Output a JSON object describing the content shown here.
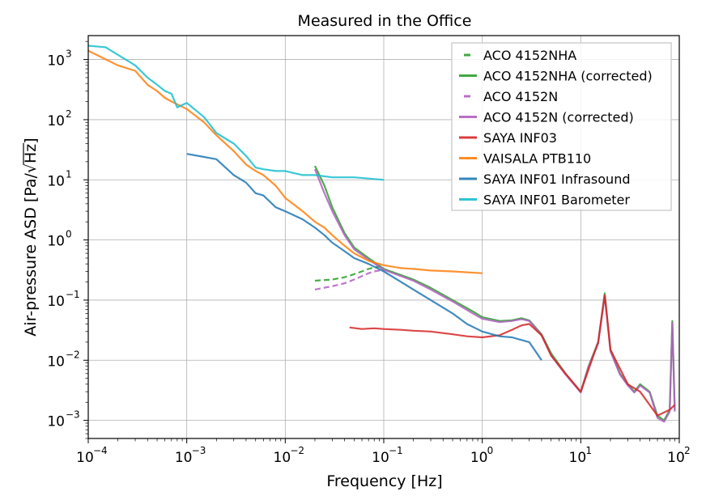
{
  "chart_data": {
    "type": "line",
    "title": "Measured in the Office",
    "xlabel": "Frequency [Hz]",
    "ylabel_prefix": "Air-pressure ASD [Pa/",
    "ylabel_radicand": "Hz",
    "ylabel_suffix": "]",
    "xscale": "log",
    "yscale": "log",
    "xlim": [
      0.0001,
      100
    ],
    "ylim": [
      0.0005,
      2500
    ],
    "grid": true,
    "legend_position": "top-right",
    "xticks": [
      {
        "value": 0.0001,
        "base": "10",
        "exp": "−4"
      },
      {
        "value": 0.001,
        "base": "10",
        "exp": "−3"
      },
      {
        "value": 0.01,
        "base": "10",
        "exp": "−2"
      },
      {
        "value": 0.1,
        "base": "10",
        "exp": "−1"
      },
      {
        "value": 1,
        "base": "10",
        "exp": "0"
      },
      {
        "value": 10,
        "base": "10",
        "exp": "1"
      },
      {
        "value": 100,
        "base": "10",
        "exp": "2"
      }
    ],
    "yticks": [
      {
        "value": 0.001,
        "base": "10",
        "exp": "−3"
      },
      {
        "value": 0.01,
        "base": "10",
        "exp": "−2"
      },
      {
        "value": 0.1,
        "base": "10",
        "exp": "−1"
      },
      {
        "value": 1,
        "base": "10",
        "exp": "0"
      },
      {
        "value": 10,
        "base": "10",
        "exp": "1"
      },
      {
        "value": 100,
        "base": "10",
        "exp": "2"
      },
      {
        "value": 1000,
        "base": "10",
        "exp": "3"
      }
    ],
    "series": [
      {
        "name": "ACO 4152NHA",
        "color": "#2ca02c",
        "dashed": true,
        "x": [
          0.02,
          0.03,
          0.04,
          0.05,
          0.06,
          0.07,
          0.08,
          0.09,
          0.1
        ],
        "y": [
          0.21,
          0.22,
          0.24,
          0.27,
          0.3,
          0.33,
          0.35,
          0.36,
          0.36
        ]
      },
      {
        "name": "ACO 4152NHA (corrected)",
        "color": "#2ca02c",
        "dashed": false,
        "x": [
          0.02,
          0.025,
          0.03,
          0.04,
          0.05,
          0.07,
          0.1,
          0.2,
          0.3,
          0.5,
          0.8,
          1,
          1.5,
          2,
          2.5,
          3,
          4,
          5,
          7,
          10,
          12,
          15,
          17.5,
          20,
          25,
          30,
          35,
          40,
          50,
          60,
          70,
          80,
          85,
          90
        ],
        "y": [
          17,
          8,
          3.5,
          1.3,
          0.75,
          0.5,
          0.33,
          0.22,
          0.16,
          0.1,
          0.065,
          0.052,
          0.045,
          0.046,
          0.05,
          0.046,
          0.027,
          0.013,
          0.006,
          0.003,
          0.008,
          0.02,
          0.13,
          0.015,
          0.006,
          0.004,
          0.003,
          0.004,
          0.003,
          0.0012,
          0.001,
          0.0015,
          0.045,
          0.0015
        ]
      },
      {
        "name": "ACO 4152N",
        "color": "#b05fc0",
        "dashed": true,
        "x": [
          0.02,
          0.03,
          0.04,
          0.05,
          0.06,
          0.07,
          0.08,
          0.09,
          0.1
        ],
        "y": [
          0.15,
          0.17,
          0.19,
          0.22,
          0.25,
          0.28,
          0.3,
          0.31,
          0.31
        ]
      },
      {
        "name": "ACO 4152N (corrected)",
        "color": "#b05fc0",
        "dashed": false,
        "x": [
          0.02,
          0.025,
          0.03,
          0.04,
          0.05,
          0.07,
          0.1,
          0.2,
          0.3,
          0.5,
          0.8,
          1,
          1.5,
          2,
          2.5,
          3,
          4,
          5,
          7,
          10,
          12,
          15,
          17.5,
          20,
          25,
          30,
          35,
          40,
          50,
          60,
          70,
          80,
          85,
          90
        ],
        "y": [
          15,
          6,
          3,
          1.2,
          0.7,
          0.47,
          0.32,
          0.21,
          0.15,
          0.095,
          0.06,
          0.049,
          0.043,
          0.045,
          0.048,
          0.045,
          0.026,
          0.012,
          0.0058,
          0.0029,
          0.0078,
          0.019,
          0.12,
          0.014,
          0.0058,
          0.0038,
          0.0029,
          0.0038,
          0.0029,
          0.0011,
          0.00095,
          0.0014,
          0.042,
          0.0014
        ]
      },
      {
        "name": "SAYA INF03",
        "color": "#d62728",
        "dashed": false,
        "x": [
          0.045,
          0.06,
          0.08,
          0.1,
          0.15,
          0.2,
          0.3,
          0.5,
          0.7,
          1,
          1.5,
          2,
          2.5,
          3,
          4,
          5,
          7,
          10,
          15,
          17.5,
          20,
          30,
          40,
          60,
          80,
          90
        ],
        "y": [
          0.035,
          0.033,
          0.034,
          0.033,
          0.032,
          0.031,
          0.03,
          0.027,
          0.025,
          0.024,
          0.026,
          0.032,
          0.038,
          0.04,
          0.026,
          0.012,
          0.006,
          0.003,
          0.02,
          0.12,
          0.015,
          0.004,
          0.003,
          0.0012,
          0.0015,
          0.0018
        ]
      },
      {
        "name": "VAISALA PTB110",
        "color": "#ff7f0e",
        "dashed": false,
        "x": [
          0.0001,
          0.0002,
          0.0003,
          0.0004,
          0.0005,
          0.0006,
          0.0007,
          0.0008,
          0.001,
          0.0015,
          0.002,
          0.003,
          0.004,
          0.005,
          0.006,
          0.008,
          0.01,
          0.015,
          0.02,
          0.025,
          0.03,
          0.04,
          0.05,
          0.07,
          0.1,
          0.15,
          0.2,
          0.3,
          0.5,
          0.7,
          1
        ],
        "y": [
          1400,
          800,
          650,
          380,
          300,
          230,
          200,
          180,
          150,
          90,
          55,
          30,
          18,
          14,
          12,
          8,
          5,
          3,
          2,
          1.6,
          1.2,
          0.8,
          0.6,
          0.45,
          0.38,
          0.34,
          0.33,
          0.31,
          0.3,
          0.29,
          0.28
        ]
      },
      {
        "name": "SAYA INF01 Infrasound",
        "color": "#1f77b4",
        "dashed": false,
        "x": [
          0.001,
          0.0015,
          0.002,
          0.003,
          0.004,
          0.005,
          0.006,
          0.008,
          0.01,
          0.015,
          0.02,
          0.025,
          0.03,
          0.04,
          0.05,
          0.07,
          0.1,
          0.15,
          0.2,
          0.3,
          0.5,
          0.7,
          1,
          1.5,
          2,
          3,
          4
        ],
        "y": [
          27,
          24,
          22,
          12,
          9,
          6,
          5.5,
          3.5,
          3,
          2.2,
          1.6,
          1.2,
          0.9,
          0.65,
          0.5,
          0.4,
          0.3,
          0.2,
          0.15,
          0.1,
          0.06,
          0.04,
          0.03,
          0.025,
          0.024,
          0.02,
          0.01
        ]
      },
      {
        "name": "SAYA INF01 Barometer",
        "color": "#17becf",
        "dashed": false,
        "x": [
          0.0001,
          0.00015,
          0.0002,
          0.0003,
          0.0004,
          0.0005,
          0.0006,
          0.0007,
          0.0008,
          0.001,
          0.0015,
          0.002,
          0.003,
          0.004,
          0.005,
          0.006,
          0.008,
          0.01,
          0.015,
          0.02,
          0.03,
          0.05,
          0.07,
          0.1
        ],
        "y": [
          1700,
          1600,
          1200,
          800,
          500,
          380,
          300,
          270,
          160,
          190,
          110,
          60,
          40,
          25,
          16,
          15,
          14,
          14,
          12,
          12,
          11,
          11,
          10.5,
          10
        ]
      }
    ]
  }
}
